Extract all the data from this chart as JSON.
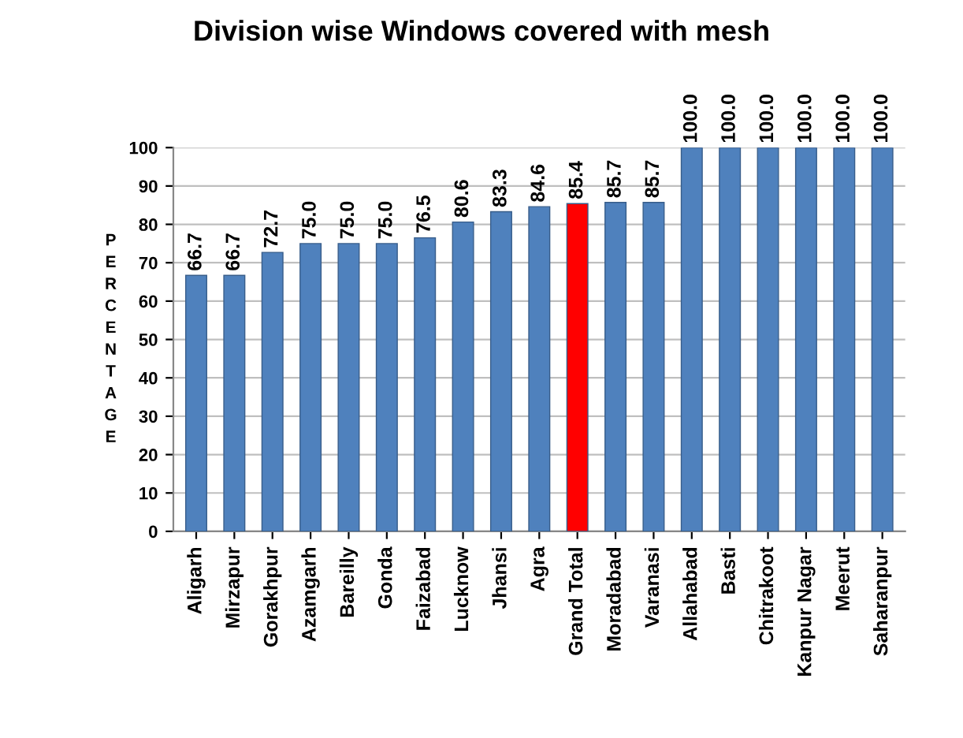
{
  "chart_data": {
    "type": "bar",
    "title": "Division wise Windows covered with mesh",
    "ylabel": "PERCENTAGE",
    "categories": [
      "Aligarh",
      "Mirzapur",
      "Gorakhpur",
      "Azamgarh",
      "Bareilly",
      "Gonda",
      "Faizabad",
      "Lucknow",
      "Jhansi",
      "Agra",
      "Grand Total",
      "Moradabad",
      "Varanasi",
      "Allahabad",
      "Basti",
      "Chitrakoot",
      "Kanpur Nagar",
      "Meerut",
      "Saharanpur"
    ],
    "values": [
      66.7,
      66.7,
      72.7,
      75.0,
      75.0,
      75.0,
      76.5,
      80.6,
      83.3,
      84.6,
      85.4,
      85.7,
      85.7,
      100.0,
      100.0,
      100.0,
      100.0,
      100.0,
      100.0
    ],
    "colors": [
      "#4f81bd",
      "#4f81bd",
      "#4f81bd",
      "#4f81bd",
      "#4f81bd",
      "#4f81bd",
      "#4f81bd",
      "#4f81bd",
      "#4f81bd",
      "#4f81bd",
      "#ff0000",
      "#4f81bd",
      "#4f81bd",
      "#4f81bd",
      "#4f81bd",
      "#4f81bd",
      "#4f81bd",
      "#4f81bd",
      "#4f81bd"
    ],
    "value_labels": [
      "66.7",
      "66.7",
      "72.7",
      "75.0",
      "75.0",
      "75.0",
      "76.5",
      "80.6",
      "83.3",
      "84.6",
      "85.4",
      "85.7",
      "85.7",
      "100.0",
      "100.0",
      "100.0",
      "100.0",
      "100.0",
      "100.0"
    ],
    "ylim": [
      0,
      100
    ],
    "yticks": [
      0,
      10,
      20,
      30,
      40,
      50,
      60,
      70,
      80,
      90,
      100
    ],
    "grid": "y"
  }
}
